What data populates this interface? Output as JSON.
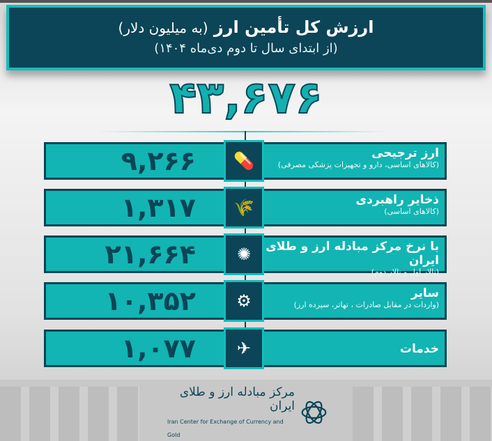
{
  "header": {
    "title": "ارزش کل تأمین ارز",
    "title_unit": "(به میلیون دلار)",
    "subtitle": "(از ابتدای سال تا دوم دی‌ماه ۱۴۰۴)"
  },
  "total": "۴۳,۶۷۶",
  "rows": [
    {
      "value": "۹,۲۶۶",
      "title": "ارز ترجیحی",
      "subtitle": "(کالاهای اساسی، دارو و تجهیزات پزشکی مصرفی)",
      "icon": "medicine-wheat-icon"
    },
    {
      "value": "۱,۳۱۷",
      "title": "ذخایر راهبردی",
      "subtitle": "(کالاهای اساسی)",
      "icon": "wheat-icon"
    },
    {
      "value": "۲۱,۶۶۴",
      "title": "با نرخ مرکز مبادله ارز و طلای ایران",
      "subtitle": "(تالار اول و تالار دوم)",
      "icon": "exchange-center-logo-icon"
    },
    {
      "value": "۱۰,۳۵۲",
      "title": "سایر",
      "subtitle": "(واردات در مقابل صادرات ، تهاتر، سپرده ارز)",
      "icon": "gears-box-icon"
    },
    {
      "value": "۱,۰۷۷",
      "title": "خدمات",
      "subtitle": "",
      "icon": "services-icon"
    }
  ],
  "footer": {
    "logo_ar": "مرکز مبادله ارز و طلای ایران",
    "logo_en": "Iran Center for Exchange of Currency and Gold"
  },
  "colors": {
    "teal": "#12b5b3",
    "dark": "#0b4557"
  }
}
